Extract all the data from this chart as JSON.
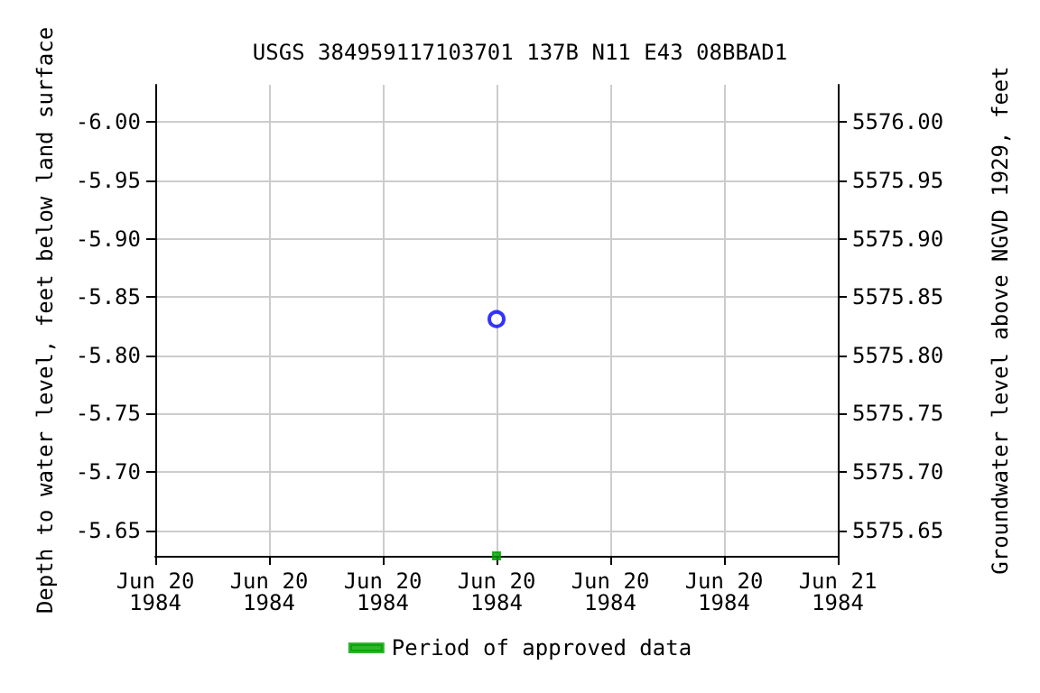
{
  "chart_data": {
    "type": "scatter",
    "title": "USGS 384959117103701 137B N11 E43 08BBAD1",
    "ylabel": "Depth to water level, feet below land surface",
    "y2label": "Groundwater level above NGVD 1929, feet",
    "xlim": [
      "1984-06-20T00:00",
      "1984-06-21T00:00"
    ],
    "xticks": [
      {
        "value": "1984-06-20T00:00",
        "label": "Jun 20\n1984"
      },
      {
        "value": "1984-06-20T04:00",
        "label": "Jun 20\n1984"
      },
      {
        "value": "1984-06-20T08:00",
        "label": "Jun 20\n1984"
      },
      {
        "value": "1984-06-20T12:00",
        "label": "Jun 20\n1984"
      },
      {
        "value": "1984-06-20T16:00",
        "label": "Jun 20\n1984"
      },
      {
        "value": "1984-06-20T20:00",
        "label": "Jun 20\n1984"
      },
      {
        "value": "1984-06-21T00:00",
        "label": "Jun 21\n1984"
      }
    ],
    "ylim": [
      -5.628,
      -6.032
    ],
    "yticks": [
      {
        "value": -6,
        "label": "-6.00"
      },
      {
        "value": -5.95,
        "label": "-5.95"
      },
      {
        "value": -5.9,
        "label": "-5.90"
      },
      {
        "value": -5.85,
        "label": "-5.85"
      },
      {
        "value": -5.8,
        "label": "-5.80"
      },
      {
        "value": -5.75,
        "label": "-5.75"
      },
      {
        "value": -5.7,
        "label": "-5.70"
      },
      {
        "value": -5.65,
        "label": "-5.65"
      }
    ],
    "y2lim": [
      5575.628,
      5576.032
    ],
    "y2ticks": [
      {
        "value": 5576,
        "label": "5576.00"
      },
      {
        "value": 5575.95,
        "label": "5575.95"
      },
      {
        "value": 5575.9,
        "label": "5575.90"
      },
      {
        "value": 5575.85,
        "label": "5575.85"
      },
      {
        "value": 5575.8,
        "label": "5575.80"
      },
      {
        "value": 5575.75,
        "label": "5575.75"
      },
      {
        "value": 5575.7,
        "label": "5575.70"
      },
      {
        "value": 5575.65,
        "label": "5575.65"
      }
    ],
    "grid": true,
    "legend": "bottom",
    "series": [
      {
        "color": "#0000ff",
        "marker": "circle",
        "x": [
          "1984-06-20T12:00"
        ],
        "values": [
          -5.831
        ]
      },
      {
        "name": "Period of approved data",
        "color": "#00a000",
        "marker": "square",
        "x": [
          "1984-06-20T12:00"
        ],
        "values": [
          -5.628
        ]
      }
    ]
  }
}
